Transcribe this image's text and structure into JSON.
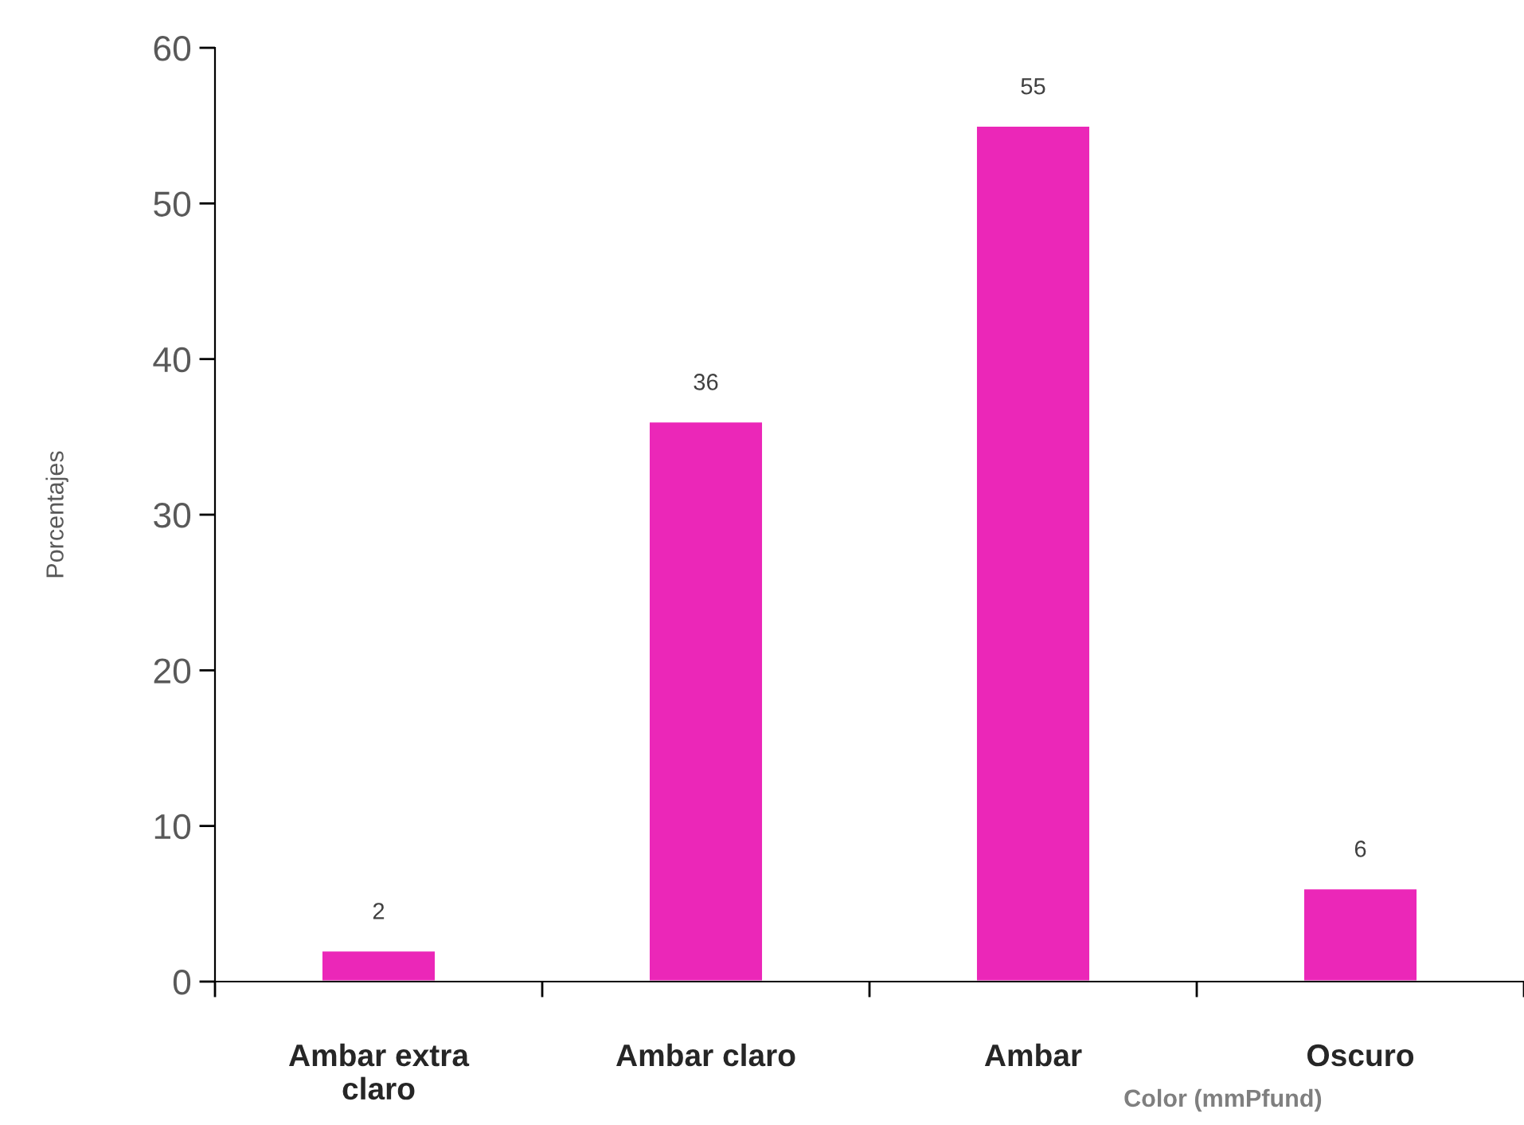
{
  "chart_data": {
    "type": "bar",
    "categories": [
      "Ambar extra claro",
      "Ambar claro",
      "Ambar",
      "Oscuro"
    ],
    "values": [
      2,
      36,
      55,
      6
    ],
    "color": "#eb27b8",
    "data_labels": true,
    "ylabel": "Porcentajes",
    "xlabel": "Color (mmPfund)",
    "ylim": [
      0,
      60
    ],
    "yticks": [
      0,
      10,
      20,
      30,
      40,
      50,
      60
    ],
    "grid": false,
    "legend": false
  }
}
